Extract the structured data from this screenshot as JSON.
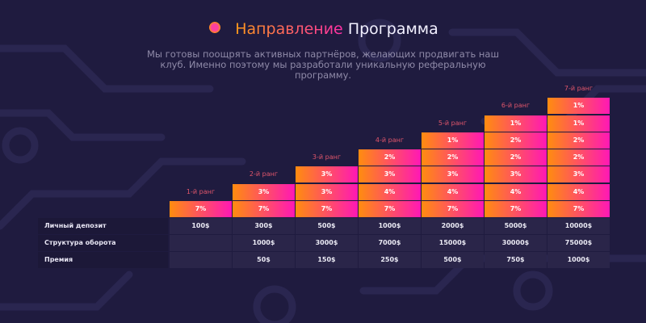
{
  "header": {
    "title_accent": "Направление",
    "title_main": "Программа",
    "description_lines": [
      "Мы готовы поощрять активных партнёров, желающих продвигать наш",
      "клуб. Именно поэтому мы разработали уникальную реферальную",
      "программу."
    ]
  },
  "colors": {
    "background": "#1f1b3f",
    "gradient_start": "#ff8c0f",
    "gradient_end": "#ff18b5",
    "rank_label": "#e0566b"
  },
  "ranks": [
    {
      "label": "1-й ранг",
      "levels": [
        "7%"
      ]
    },
    {
      "label": "2-й ранг",
      "levels": [
        "7%",
        "3%"
      ]
    },
    {
      "label": "3-й ранг",
      "levels": [
        "7%",
        "3%",
        "3%"
      ]
    },
    {
      "label": "4-й ранг",
      "levels": [
        "7%",
        "4%",
        "3%",
        "2%"
      ]
    },
    {
      "label": "5-й ранг",
      "levels": [
        "7%",
        "4%",
        "3%",
        "2%",
        "1%"
      ]
    },
    {
      "label": "6-й ранг",
      "levels": [
        "7%",
        "4%",
        "3%",
        "2%",
        "2%",
        "1%"
      ]
    },
    {
      "label": "7-й ранг",
      "levels": [
        "7%",
        "4%",
        "3%",
        "2%",
        "2%",
        "1%",
        "1%"
      ]
    }
  ],
  "table": {
    "rows": [
      {
        "label": "Личный депозит",
        "values": [
          "100$",
          "300$",
          "500$",
          "1000$",
          "2000$",
          "5000$",
          "10000$"
        ]
      },
      {
        "label": "Структура оборота",
        "values": [
          "",
          "1000$",
          "3000$",
          "7000$",
          "15000$",
          "30000$",
          "75000$"
        ]
      },
      {
        "label": "Премия",
        "values": [
          "",
          "50$",
          "150$",
          "250$",
          "500$",
          "750$",
          "1000$"
        ]
      }
    ]
  }
}
